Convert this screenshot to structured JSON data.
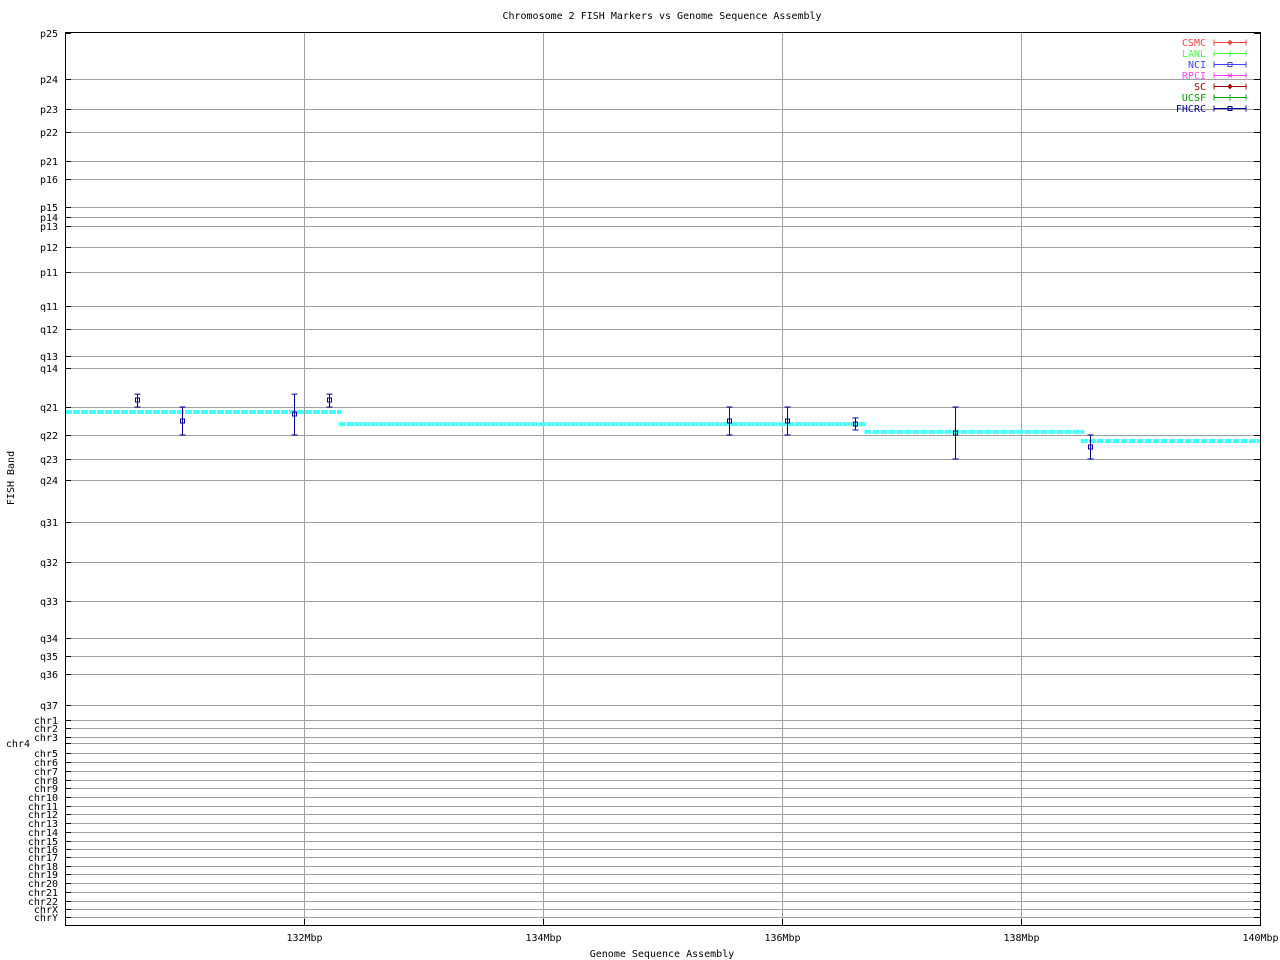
{
  "chart_data": {
    "type": "scatter",
    "title": "Chromosome 2 FISH Markers vs Genome Sequence Assembly",
    "xlabel": "Genome Sequence Assembly",
    "ylabel": "FISH Band",
    "xlim": [
      130,
      140
    ],
    "x_unit": "Mbp",
    "xticks": [
      {
        "value": 132,
        "label": "132Mbp"
      },
      {
        "value": 134,
        "label": "134Mbp"
      },
      {
        "value": 136,
        "label": "136Mbp"
      },
      {
        "value": 138,
        "label": "138Mbp"
      },
      {
        "value": 140,
        "label": "140Mbp"
      }
    ],
    "y_note": "y values are expressed as positions along the ordered ytick list (index 0 = p25)",
    "yticks": [
      "p25",
      "p24",
      "p23",
      "p22",
      "p21",
      "p16",
      "p15",
      "p14",
      "p13",
      "p12",
      "p11",
      "q11",
      "q12",
      "q13",
      "q14",
      "q21",
      "q22",
      "q23",
      "q24",
      "q31",
      "q32",
      "q33",
      "q34",
      "q35",
      "q36",
      "q37",
      "chr1",
      "chr2",
      "chr3",
      "chr4",
      "chr5",
      "chr6",
      "chr7",
      "chr8",
      "chr9",
      "chr10",
      "chr11",
      "chr12",
      "chr13",
      "chr14",
      "chr15",
      "chr16",
      "chr17",
      "chr18",
      "chr19",
      "chr20",
      "chr21",
      "chr22",
      "chrX",
      "chrY"
    ],
    "grid": true,
    "legend_position": "top-right",
    "legend": [
      {
        "name": "CSMC",
        "color": "#ff4040",
        "marker": "diamond"
      },
      {
        "name": "LANL",
        "color": "#40ff40",
        "marker": "plus"
      },
      {
        "name": "NCI",
        "color": "#4040ff",
        "marker": "square"
      },
      {
        "name": "RPCI",
        "color": "#ff40ff",
        "marker": "cross"
      },
      {
        "name": "SC",
        "color": "#a00000",
        "marker": "diamond"
      },
      {
        "name": "UCSF",
        "color": "#00a000",
        "marker": "plus"
      },
      {
        "name": "FHCRC",
        "color": "#0000a0",
        "marker": "square"
      }
    ],
    "series": [
      {
        "name": "FHCRC",
        "color": "#0000a0",
        "points": [
          {
            "x": 130.6,
            "y": 14.82,
            "y_lo": 14.67,
            "y_hi": 15.0
          },
          {
            "x": 130.98,
            "y": 15.5,
            "y_lo": 15.0,
            "y_hi": 16.0
          },
          {
            "x": 131.92,
            "y": 15.25,
            "y_lo": 14.67,
            "y_hi": 16.0
          },
          {
            "x": 132.21,
            "y": 14.82,
            "y_lo": 14.67,
            "y_hi": 15.0
          },
          {
            "x": 135.56,
            "y": 15.5,
            "y_lo": 15.0,
            "y_hi": 16.0
          },
          {
            "x": 136.04,
            "y": 15.5,
            "y_lo": 15.0,
            "y_hi": 16.0
          },
          {
            "x": 136.61,
            "y": 15.61,
            "y_lo": 15.39,
            "y_hi": 15.82
          },
          {
            "x": 137.45,
            "y": 15.93,
            "y_lo": 15.0,
            "y_hi": 17.0
          },
          {
            "x": 138.58,
            "y": 16.5,
            "y_lo": 16.0,
            "y_hi": 17.0
          }
        ]
      }
    ],
    "assembly": {
      "color": "#40ffff",
      "segments": [
        {
          "x0": 130.0,
          "x1": 132.31,
          "y": 15.18
        },
        {
          "x0": 132.29,
          "x1": 136.71,
          "y": 15.61
        },
        {
          "x0": 136.69,
          "x1": 138.53,
          "y": 15.89
        },
        {
          "x0": 138.5,
          "x1": 140.0,
          "y": 16.25
        }
      ]
    }
  }
}
